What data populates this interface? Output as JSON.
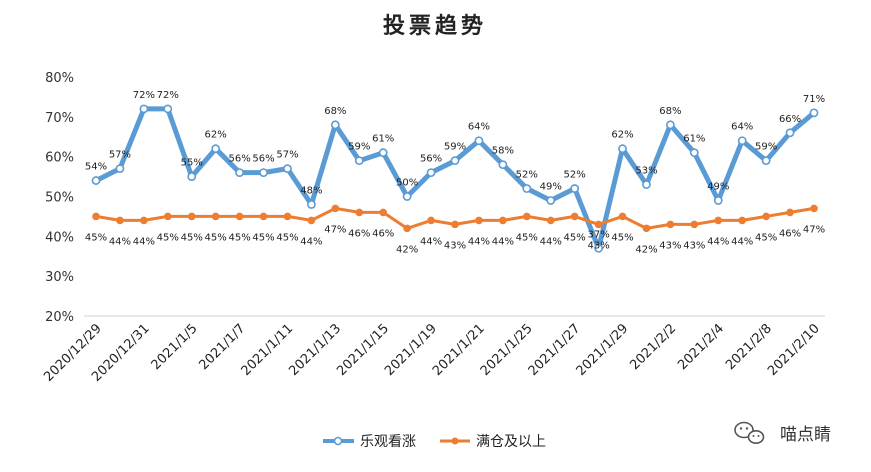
{
  "chart_data": {
    "type": "line",
    "title": "投票趋势",
    "y_ticks": [
      "80%",
      "70%",
      "60%",
      "50%",
      "40%",
      "30%",
      "20%"
    ],
    "ylim": [
      20,
      80
    ],
    "x_tick_labels": [
      "2020/12/29",
      "2020/12/31",
      "2021/1/5",
      "2021/1/7",
      "2021/1/11",
      "2021/1/13",
      "2021/1/15",
      "2021/1/19",
      "2021/1/21",
      "2021/1/25",
      "2021/1/27",
      "2021/1/29",
      "2021/2/2",
      "2021/2/4",
      "2021/2/8",
      "2021/2/10"
    ],
    "series": [
      {
        "name": "乐观看涨",
        "color": "#5B9BD5",
        "values": [
          54,
          57,
          72,
          72,
          55,
          62,
          56,
          56,
          57,
          48,
          68,
          59,
          61,
          50,
          56,
          59,
          64,
          58,
          52,
          49,
          52,
          37,
          62,
          53,
          68,
          61,
          49,
          64,
          59,
          66,
          71
        ],
        "labels": [
          "54%",
          "57%",
          "72%",
          "72%",
          "55%",
          "62%",
          "56%",
          "56%",
          "57%",
          "48%",
          "68%",
          "59%",
          "61%",
          "50%",
          "56%",
          "59%",
          "64%",
          "58%",
          "52%",
          "49%",
          "52%",
          "37%",
          "62%",
          "53%",
          "68%",
          "61%",
          "49%",
          "64%",
          "59%",
          "66%",
          "71%"
        ]
      },
      {
        "name": "满仓及以上",
        "color": "#ED7D31",
        "values": [
          45,
          44,
          44,
          45,
          45,
          45,
          45,
          45,
          45,
          44,
          47,
          46,
          46,
          42,
          44,
          43,
          44,
          44,
          45,
          44,
          45,
          43,
          45,
          42,
          43,
          43,
          44,
          44,
          45,
          46,
          47
        ],
        "labels": [
          "45%",
          "44%",
          "44%",
          "45%",
          "45%",
          "45%",
          "45%",
          "45%",
          "45%",
          "44%",
          "47%",
          "46%",
          "46%",
          "42%",
          "44%",
          "43%",
          "44%",
          "44%",
          "45%",
          "44%",
          "45%",
          "43%",
          "45%",
          "42%",
          "43%",
          "43%",
          "44%",
          "44%",
          "45%",
          "46%",
          "47%"
        ]
      }
    ]
  },
  "watermark": {
    "icon": "wechat-icon",
    "text": "喵点睛"
  }
}
